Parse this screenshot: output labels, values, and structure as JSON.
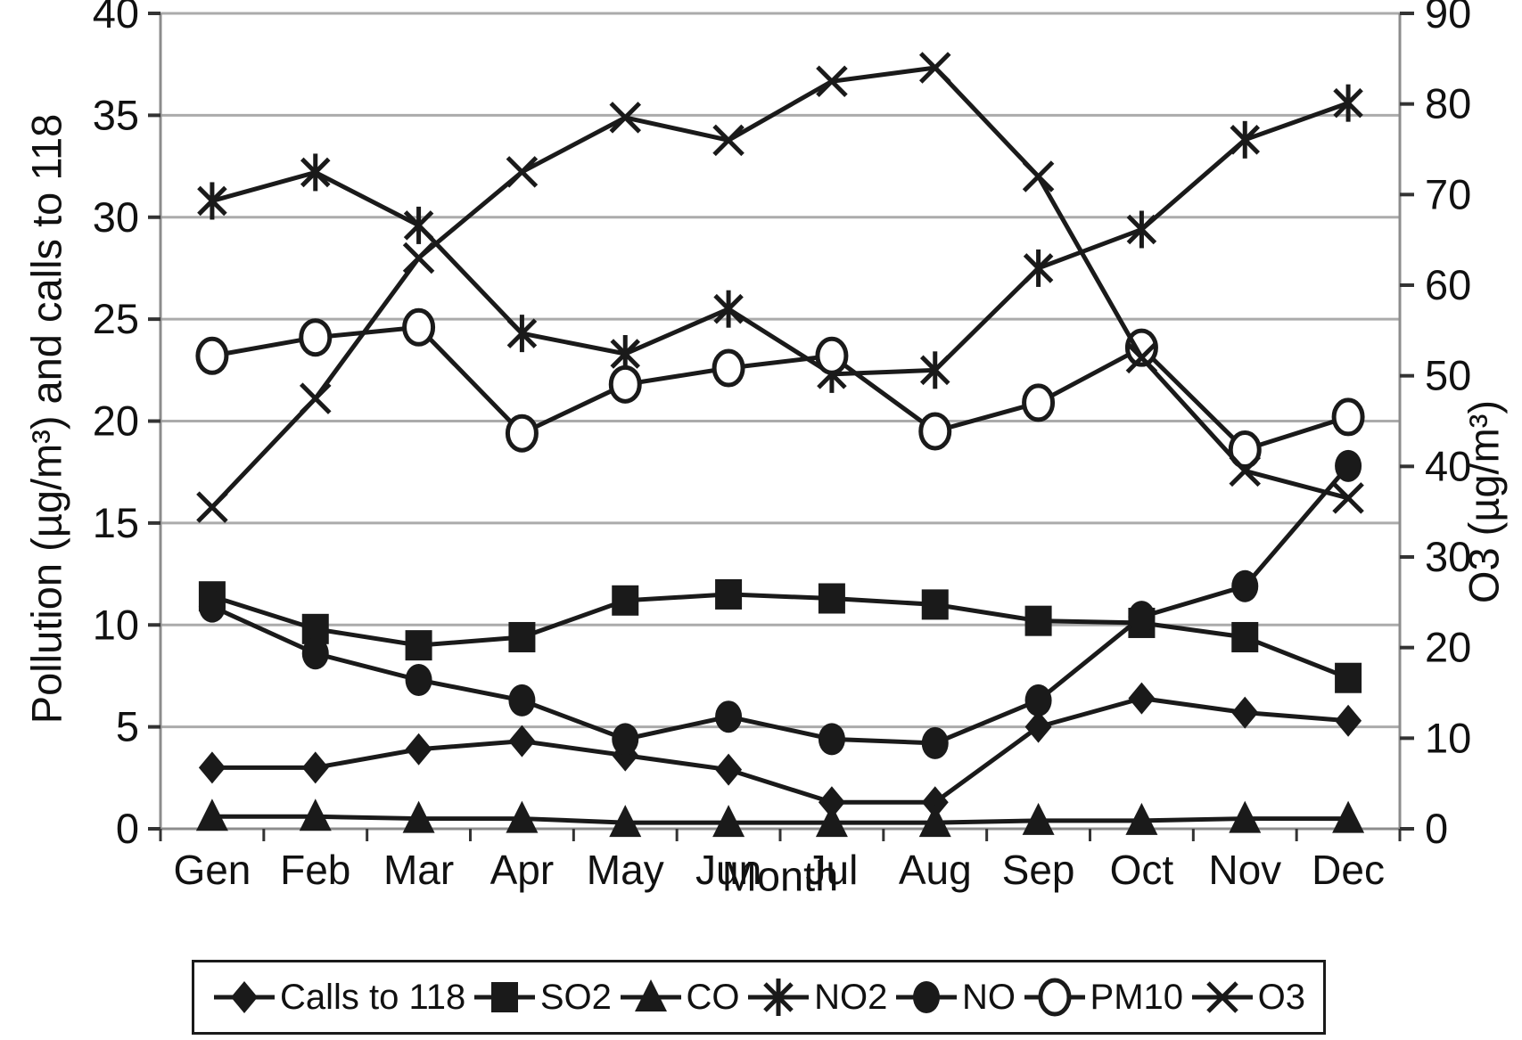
{
  "chart_data": {
    "type": "line",
    "title": "",
    "x_axis_title": "Month",
    "left_axis": {
      "title": "Pollution (µg/m³) and calls to 118",
      "min": 0,
      "max": 40,
      "step": 5,
      "tick_labels": [
        "0",
        "5",
        "10",
        "15",
        "20",
        "25",
        "30",
        "35",
        "40"
      ]
    },
    "right_axis": {
      "title": "O3 (µg/m³)",
      "min": 0,
      "max": 90,
      "step": 10,
      "tick_labels": [
        "0",
        "10",
        "20",
        "30",
        "40",
        "50",
        "60",
        "70",
        "80",
        "90"
      ]
    },
    "grid": "horizontal-only",
    "legend_position": "bottom",
    "categories": [
      "Gen",
      "Feb",
      "Mar",
      "Apr",
      "May",
      "Jun",
      "Jul",
      "Aug",
      "Sep",
      "Oct",
      "Nov",
      "Dec"
    ],
    "series": [
      {
        "name": "Calls to 118",
        "marker": "diamond",
        "axis": "left",
        "values": [
          3.0,
          3.0,
          3.9,
          4.3,
          3.6,
          2.9,
          1.3,
          1.3,
          5.0,
          6.4,
          5.7,
          5.3
        ]
      },
      {
        "name": "SO2",
        "marker": "square",
        "axis": "left",
        "values": [
          11.4,
          9.8,
          9.0,
          9.4,
          11.2,
          11.5,
          11.3,
          11.0,
          10.2,
          10.1,
          9.4,
          7.4
        ]
      },
      {
        "name": "CO",
        "marker": "triangle",
        "axis": "left",
        "values": [
          0.6,
          0.6,
          0.5,
          0.5,
          0.3,
          0.3,
          0.3,
          0.3,
          0.4,
          0.4,
          0.5,
          0.5
        ]
      },
      {
        "name": "NO2",
        "marker": "star",
        "axis": "left",
        "values": [
          30.8,
          32.2,
          29.6,
          24.3,
          23.3,
          25.5,
          22.3,
          22.5,
          27.5,
          29.4,
          33.8,
          35.6
        ]
      },
      {
        "name": "NO",
        "marker": "circle-filled",
        "axis": "left",
        "values": [
          10.9,
          8.6,
          7.3,
          6.3,
          4.4,
          5.5,
          4.4,
          4.2,
          6.3,
          10.4,
          11.9,
          17.8
        ]
      },
      {
        "name": "PM10",
        "marker": "circle-open",
        "axis": "left",
        "values": [
          23.2,
          24.1,
          24.6,
          19.4,
          21.8,
          22.6,
          23.2,
          19.5,
          20.9,
          23.6,
          18.6,
          20.2
        ]
      },
      {
        "name": "O3",
        "marker": "x",
        "axis": "right",
        "values": [
          35.5,
          47.5,
          63.0,
          72.5,
          78.5,
          76.0,
          82.5,
          84.0,
          72.0,
          52.0,
          39.5,
          36.5
        ]
      }
    ],
    "colors": {
      "series": "#1a1a1a",
      "gridline": "#ababab",
      "axis_line": "#8c8c8c",
      "tick": "#333333",
      "background": "#ffffff"
    }
  }
}
